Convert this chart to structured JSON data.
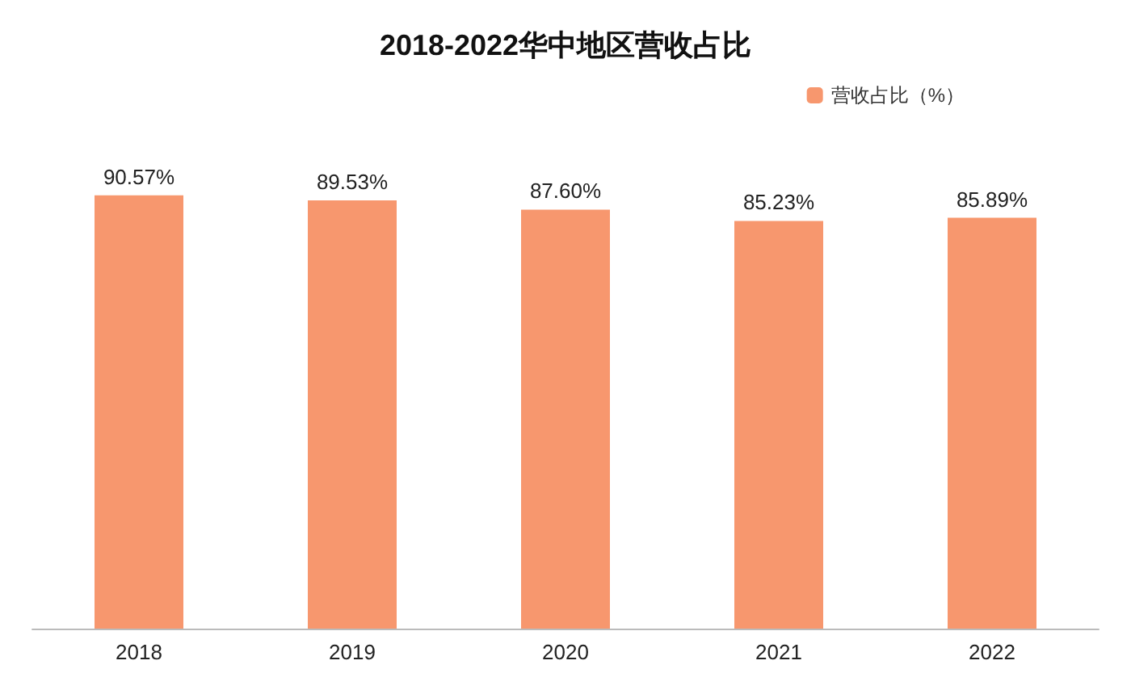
{
  "chart_data": {
    "type": "bar",
    "title": "2018-2022华中地区营收占比",
    "categories": [
      "2018",
      "2019",
      "2020",
      "2021",
      "2022"
    ],
    "series": [
      {
        "name": "营收占比（%）",
        "color": "#f7976e",
        "values": [
          90.57,
          89.53,
          87.6,
          85.23,
          85.89
        ],
        "value_labels": [
          "90.57%",
          "89.53%",
          "87.60%",
          "85.23%",
          "85.89%"
        ]
      }
    ],
    "legend": "top right"
  }
}
